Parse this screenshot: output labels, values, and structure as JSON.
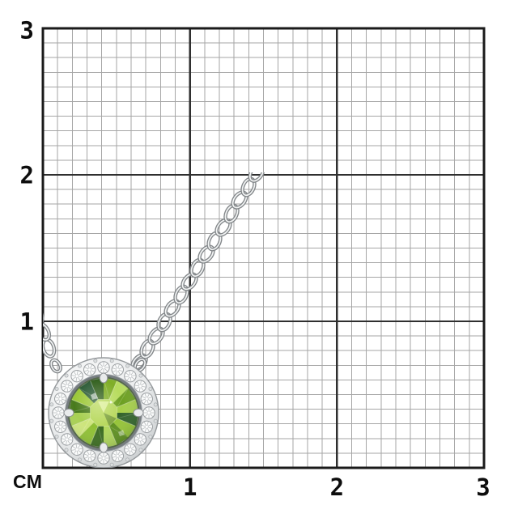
{
  "page": {
    "background": "#ffffff"
  },
  "ruler": {
    "unit_label": "СМ",
    "y_axis_labels": [
      "3",
      "2",
      "1"
    ],
    "x_axis_labels": [
      "1",
      "2",
      "3"
    ],
    "units_shown": 3,
    "minor_divisions_per_unit": 10
  },
  "colors": {
    "grid_minor": "#a6a6a6",
    "grid_major": "#2f2f2f",
    "grid_border": "#1a1a1a",
    "label_text": "#0d0d0d",
    "metal_light": "#eceeef",
    "metal_mid": "#c9cdcf",
    "metal_dark": "#8d9194",
    "diamond_white": "#fafbfb",
    "peridot_light": "#c9e178",
    "peridot_mid": "#8ab82e",
    "peridot_dark": "#47761f",
    "peridot_teal": "#2e5d38"
  },
  "product": {
    "description": "Round green peridot pendant with a round-diamond halo on a white-metal cable chain, shown over a centimeter grid"
  }
}
